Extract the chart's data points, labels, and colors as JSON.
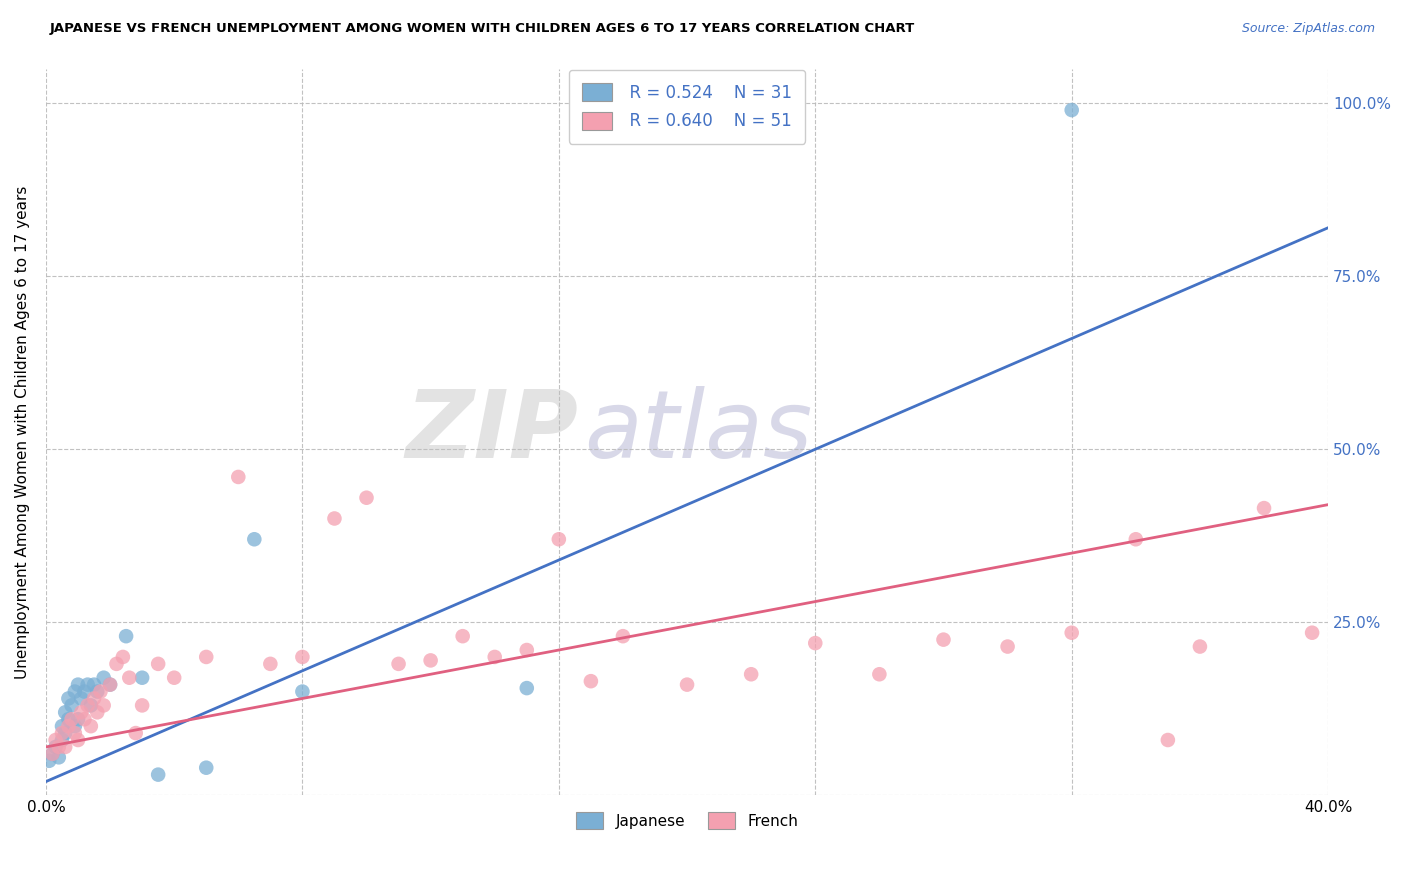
{
  "title": "JAPANESE VS FRENCH UNEMPLOYMENT AMONG WOMEN WITH CHILDREN AGES 6 TO 17 YEARS CORRELATION CHART",
  "source": "Source: ZipAtlas.com",
  "ylabel": "Unemployment Among Women with Children Ages 6 to 17 years",
  "xlim": [
    0.0,
    0.4
  ],
  "ylim": [
    0.0,
    1.05
  ],
  "xticks": [
    0.0,
    0.08,
    0.16,
    0.24,
    0.32,
    0.4
  ],
  "xticklabels": [
    "0.0%",
    "",
    "",
    "",
    "",
    "40.0%"
  ],
  "ytick_positions": [
    0.0,
    0.25,
    0.5,
    0.75,
    1.0
  ],
  "ytick_labels_right": [
    "",
    "25.0%",
    "50.0%",
    "75.0%",
    "100.0%"
  ],
  "legend_blue_r": "R = 0.524",
  "legend_blue_n": "N = 31",
  "legend_pink_r": "R = 0.640",
  "legend_pink_n": "N = 51",
  "japanese_color": "#7BAFD4",
  "french_color": "#F4A0B0",
  "trendline_blue": "#4472C4",
  "trendline_pink": "#E06080",
  "watermark_zip": "ZIP",
  "watermark_atlas": "atlas",
  "background_color": "#FFFFFF",
  "japanese_x": [
    0.001,
    0.002,
    0.003,
    0.004,
    0.005,
    0.005,
    0.006,
    0.006,
    0.007,
    0.007,
    0.008,
    0.009,
    0.009,
    0.01,
    0.01,
    0.011,
    0.012,
    0.013,
    0.014,
    0.015,
    0.016,
    0.018,
    0.02,
    0.025,
    0.03,
    0.035,
    0.05,
    0.065,
    0.08,
    0.15,
    0.32
  ],
  "japanese_y": [
    0.05,
    0.06,
    0.07,
    0.055,
    0.08,
    0.1,
    0.09,
    0.12,
    0.11,
    0.14,
    0.13,
    0.1,
    0.15,
    0.11,
    0.16,
    0.14,
    0.15,
    0.16,
    0.13,
    0.16,
    0.15,
    0.17,
    0.16,
    0.23,
    0.17,
    0.03,
    0.04,
    0.37,
    0.15,
    0.155,
    0.99
  ],
  "french_x": [
    0.002,
    0.003,
    0.004,
    0.005,
    0.006,
    0.007,
    0.008,
    0.009,
    0.01,
    0.011,
    0.012,
    0.013,
    0.014,
    0.015,
    0.016,
    0.017,
    0.018,
    0.02,
    0.022,
    0.024,
    0.026,
    0.028,
    0.03,
    0.035,
    0.04,
    0.05,
    0.06,
    0.07,
    0.08,
    0.09,
    0.1,
    0.11,
    0.12,
    0.13,
    0.14,
    0.15,
    0.16,
    0.17,
    0.18,
    0.2,
    0.22,
    0.24,
    0.26,
    0.28,
    0.3,
    0.32,
    0.34,
    0.35,
    0.36,
    0.38,
    0.395
  ],
  "french_y": [
    0.06,
    0.08,
    0.07,
    0.09,
    0.07,
    0.1,
    0.11,
    0.09,
    0.08,
    0.12,
    0.11,
    0.13,
    0.1,
    0.14,
    0.12,
    0.15,
    0.13,
    0.16,
    0.19,
    0.2,
    0.17,
    0.09,
    0.13,
    0.19,
    0.17,
    0.2,
    0.46,
    0.19,
    0.2,
    0.4,
    0.43,
    0.19,
    0.195,
    0.23,
    0.2,
    0.21,
    0.37,
    0.165,
    0.23,
    0.16,
    0.175,
    0.22,
    0.175,
    0.225,
    0.215,
    0.235,
    0.37,
    0.08,
    0.215,
    0.415,
    0.235
  ],
  "jp_trendline_x0": 0.0,
  "jp_trendline_y0": 0.02,
  "jp_trendline_x1": 0.4,
  "jp_trendline_y1": 0.82,
  "fr_trendline_x0": 0.0,
  "fr_trendline_y0": 0.07,
  "fr_trendline_x1": 0.4,
  "fr_trendline_y1": 0.42
}
